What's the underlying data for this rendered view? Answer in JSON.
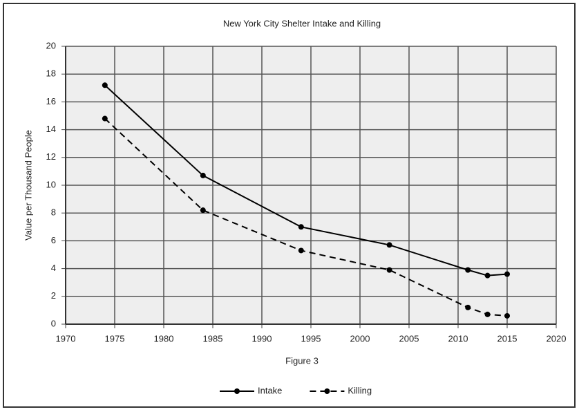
{
  "chart_data": {
    "type": "line",
    "title": "New York City Shelter Intake and Killing",
    "xlabel": "Figure 3",
    "ylabel": "Value per Thousand People",
    "x": [
      1974,
      1984,
      1994,
      2003,
      2011,
      2013,
      2015
    ],
    "series": [
      {
        "name": "Intake",
        "color": "#000000",
        "linestyle": "solid",
        "values": [
          17.2,
          10.7,
          7.0,
          5.7,
          3.9,
          3.5,
          3.6
        ]
      },
      {
        "name": "Killing",
        "color": "#000000",
        "linestyle": "dashed",
        "values": [
          14.8,
          8.2,
          5.3,
          3.9,
          1.2,
          0.7,
          0.6
        ]
      }
    ],
    "xlim": [
      1970,
      2020
    ],
    "xticks": [
      1970,
      1975,
      1980,
      1985,
      1990,
      1995,
      2000,
      2005,
      2010,
      2015,
      2020
    ],
    "ylim": [
      0,
      20
    ],
    "yticks": [
      0,
      2,
      4,
      6,
      8,
      10,
      12,
      14,
      16,
      18,
      20
    ],
    "grid": true,
    "legend": "bottom"
  }
}
